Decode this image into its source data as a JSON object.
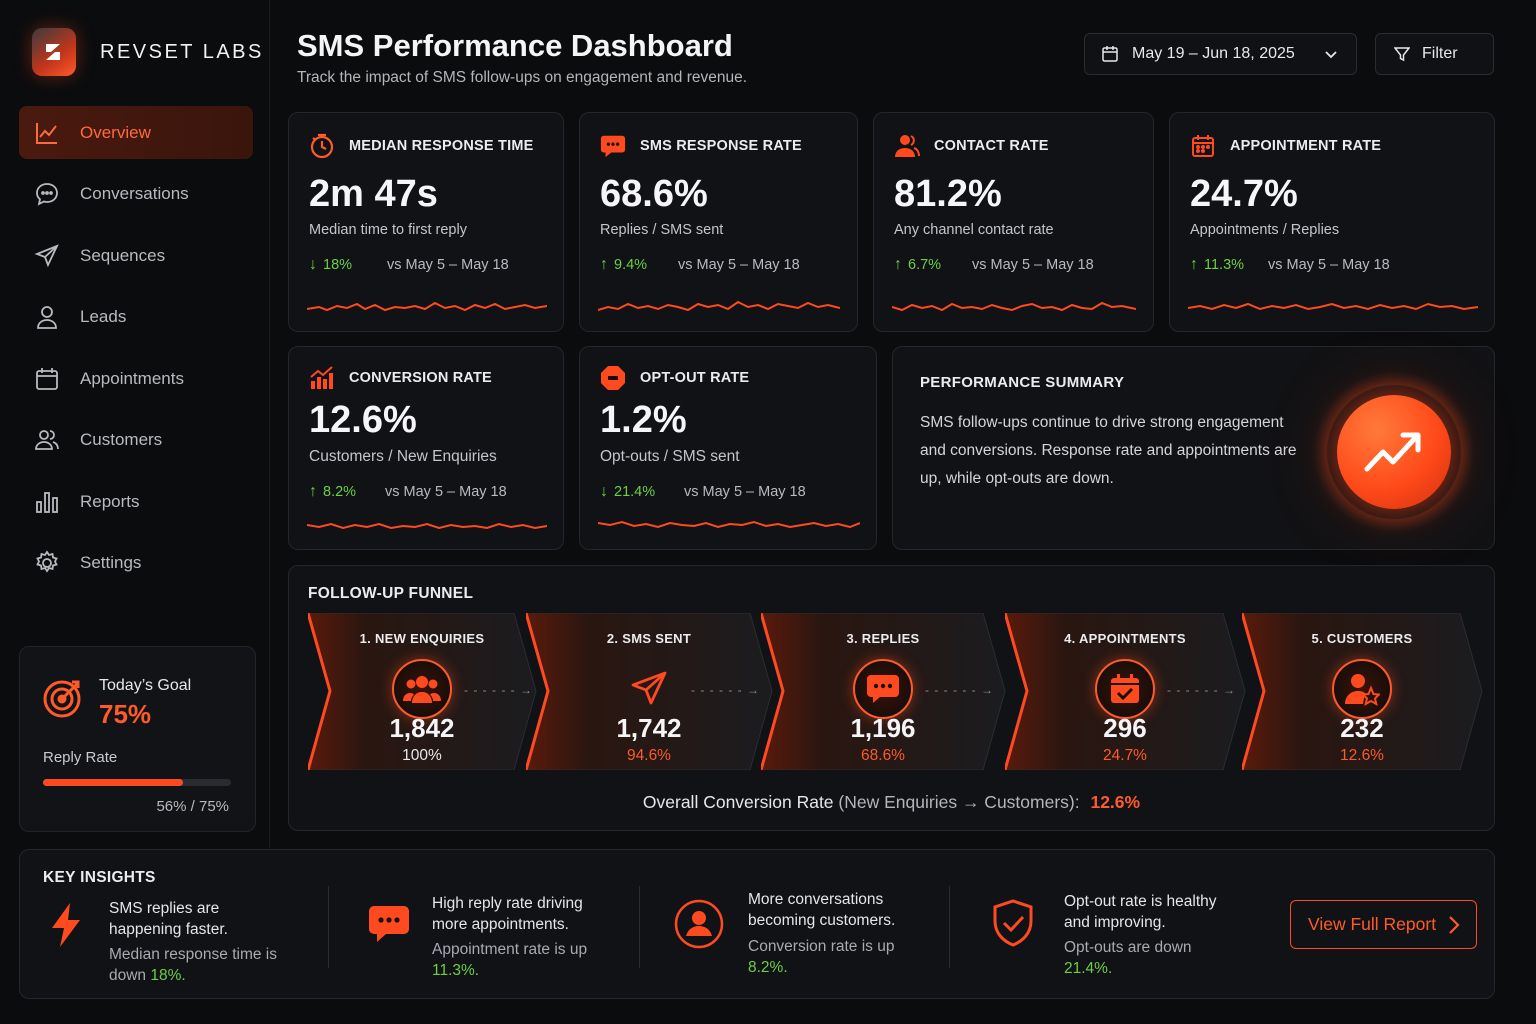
{
  "brand": {
    "name": "REVSET LABS"
  },
  "nav": {
    "items": [
      {
        "label": "Overview",
        "icon": "trend-line-icon",
        "active": true
      },
      {
        "label": "Conversations",
        "icon": "chat-bubble-icon"
      },
      {
        "label": "Sequences",
        "icon": "paper-plane-icon"
      },
      {
        "label": "Leads",
        "icon": "user-icon"
      },
      {
        "label": "Appointments",
        "icon": "calendar-icon"
      },
      {
        "label": "Customers",
        "icon": "users-icon"
      },
      {
        "label": "Reports",
        "icon": "bar-chart-icon"
      },
      {
        "label": "Settings",
        "icon": "gear-icon"
      }
    ]
  },
  "goal": {
    "title": "Today’s Goal",
    "value": "75%",
    "label": "Reply Rate",
    "progress_text": "56% / 75%",
    "progress_fraction": 0.7467
  },
  "header": {
    "title": "SMS Performance Dashboard",
    "subtitle": "Track the impact of SMS follow-ups on engagement and revenue.",
    "date_range": "May 19 – Jun 18, 2025",
    "filter_label": "Filter"
  },
  "metrics": [
    {
      "title": "MEDIAN RESPONSE TIME",
      "value": "2m 47s",
      "desc": "Median time to first reply",
      "delta": "18%",
      "direction": "down",
      "compare": "vs May 5 – May 18",
      "icon": "stopwatch-icon"
    },
    {
      "title": "SMS RESPONSE RATE",
      "value": "68.6%",
      "desc": "Replies / SMS sent",
      "delta": "9.4%",
      "direction": "up",
      "compare": "vs May 5 – May 18",
      "icon": "message-icon"
    },
    {
      "title": "CONTACT RATE",
      "value": "81.2%",
      "desc": "Any channel contact rate",
      "delta": "6.7%",
      "direction": "up",
      "compare": "vs May 5 – May 18",
      "icon": "contact-user-icon"
    },
    {
      "title": "APPOINTMENT RATE",
      "value": "24.7%",
      "desc": "Appointments / Replies",
      "delta": "11.3%",
      "direction": "up",
      "compare": "vs May 5 – May 18",
      "icon": "calendar-icon"
    },
    {
      "title": "CONVERSION RATE",
      "value": "12.6%",
      "desc": "Customers / New Enquiries",
      "delta": "8.2%",
      "direction": "up",
      "compare": "vs May 5 – May 18",
      "icon": "growth-chart-icon"
    },
    {
      "title": "OPT-OUT RATE",
      "value": "1.2%",
      "desc": "Opt-outs / SMS sent",
      "delta": "21.4%",
      "direction": "down",
      "compare": "vs May 5 – May 18",
      "icon": "stop-sign-icon"
    }
  ],
  "summary": {
    "title": "PERFORMANCE SUMMARY",
    "text": "SMS follow-ups continue to drive strong engagement and conversions. Response rate and appointments are up, while opt-outs are down."
  },
  "funnel": {
    "title": "FOLLOW-UP FUNNEL",
    "stages": [
      {
        "label": "1. NEW ENQUIRIES",
        "count": "1,842",
        "pct": "100%",
        "icon": "group-icon"
      },
      {
        "label": "2. SMS SENT",
        "count": "1,742",
        "pct": "94.6%",
        "icon": "paper-plane-icon"
      },
      {
        "label": "3. REPLIES",
        "count": "1,196",
        "pct": "68.6%",
        "icon": "chat-bubble-icon"
      },
      {
        "label": "4. APPOINTMENTS",
        "count": "296",
        "pct": "24.7%",
        "icon": "calendar-check-icon"
      },
      {
        "label": "5. CUSTOMERS",
        "count": "232",
        "pct": "12.6%",
        "icon": "user-star-icon"
      }
    ],
    "overall_label": "Overall Conversion Rate",
    "overall_note": "(New Enquiries → Customers):",
    "overall_value": "12.6%"
  },
  "insights": {
    "title": "KEY INSIGHTS",
    "items": [
      {
        "head": "SMS replies are happening faster.",
        "sub": "Median response time is down",
        "value": "18%.",
        "icon": "lightning-icon"
      },
      {
        "head": "High reply rate driving more appointments.",
        "sub": "Appointment rate is up",
        "value": "11.3%.",
        "icon": "chat-bubble-icon"
      },
      {
        "head": "More conversations becoming customers.",
        "sub": "Conversion rate is up",
        "value": "8.2%.",
        "icon": "user-circle-icon"
      },
      {
        "head": "Opt-out rate is healthy and improving.",
        "sub": "Opt-outs are down",
        "value": "21.4%.",
        "icon": "shield-check-icon"
      }
    ],
    "report_button": "View Full Report"
  },
  "colors": {
    "accent": "#ff5a2a",
    "positive": "#6ccf45",
    "background": "#0b0c0e",
    "card": "#111215"
  }
}
